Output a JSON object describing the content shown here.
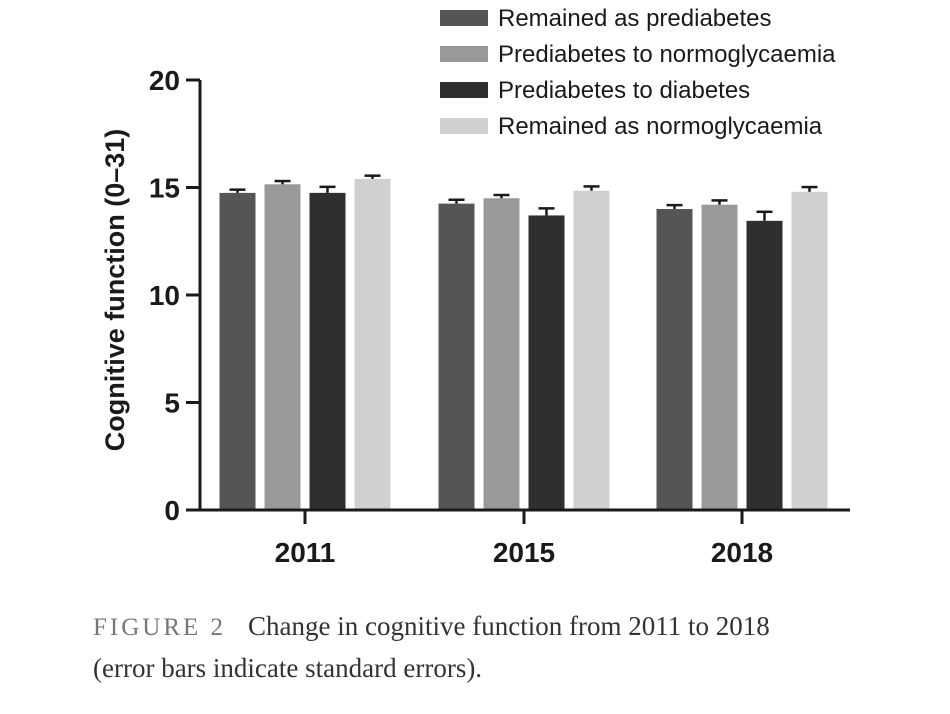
{
  "chart_data": {
    "type": "bar",
    "categories": [
      "2011",
      "2015",
      "2018"
    ],
    "ylabel": "Cognitive function (0–31)",
    "xlabel": "",
    "ylim": [
      0,
      20
    ],
    "yticks": [
      0,
      5,
      10,
      15,
      20
    ],
    "error_bars": "standard error",
    "legend_position": "top-right",
    "series": [
      {
        "name": "Remained as prediabetes",
        "color": "#555555",
        "values": [
          14.75,
          14.25,
          14.0
        ],
        "errors": [
          0.15,
          0.18,
          0.18
        ]
      },
      {
        "name": "Prediabetes to normoglycaemia",
        "color": "#999999",
        "values": [
          15.15,
          14.5,
          14.2
        ],
        "errors": [
          0.15,
          0.15,
          0.2
        ]
      },
      {
        "name": "Prediabetes to diabetes",
        "color": "#2f2f2f",
        "values": [
          14.75,
          13.7,
          13.45
        ],
        "errors": [
          0.28,
          0.33,
          0.42
        ]
      },
      {
        "name": "Remained as normoglycaemia",
        "color": "#d0d0d0",
        "values": [
          15.4,
          14.85,
          14.8
        ],
        "errors": [
          0.15,
          0.2,
          0.22
        ]
      }
    ]
  },
  "caption": {
    "label": "FIGURE 2",
    "line1": "Change in cognitive function from 2011 to 2018",
    "line2": "(error bars indicate standard errors)."
  }
}
